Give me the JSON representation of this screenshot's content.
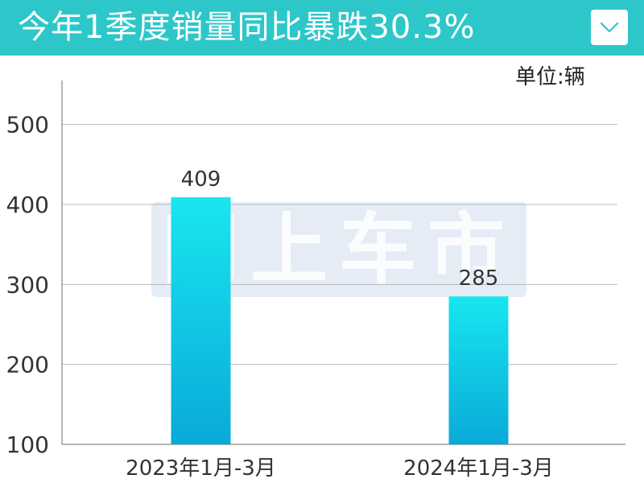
{
  "header": {
    "title": "今年1季度销量同比暴跌30.3%",
    "dropdown_icon": "chevron-down-icon"
  },
  "unit_label": "单位:辆",
  "watermark": "网上车市",
  "colors": {
    "header_bg": "#2dc7c9",
    "bar_top": "#19e6ef",
    "bar_bottom": "#09aad8",
    "grid": "#b8b8b8",
    "text": "#333333"
  },
  "chart_data": {
    "type": "bar",
    "categories": [
      "2023年1月-3月",
      "2024年1月-3月"
    ],
    "values": [
      409,
      285
    ],
    "data_labels": [
      "409",
      "285"
    ],
    "y_ticks": [
      100,
      200,
      300,
      400,
      500
    ],
    "y_tick_labels": [
      "100",
      "200",
      "300",
      "400",
      "500"
    ],
    "ylim": [
      100,
      555
    ],
    "grid": true,
    "title": "今年1季度销量同比暴跌30.3%",
    "unit": "单位:辆"
  }
}
